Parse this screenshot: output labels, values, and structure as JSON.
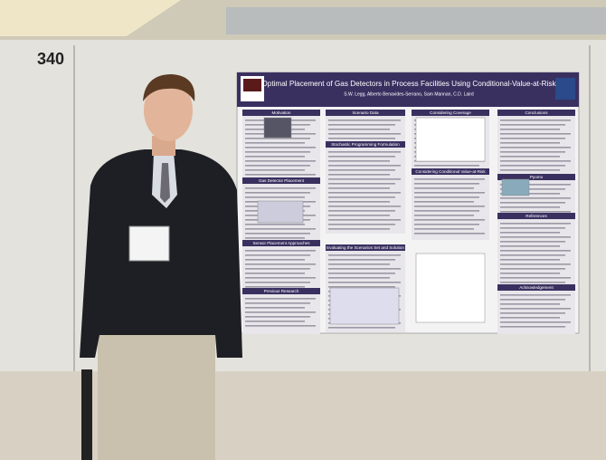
{
  "booth_number": "340",
  "poster": {
    "title": "Optimal Placement of Gas Detectors in Process Facilities Using Conditional-Value-at-Risk",
    "authors": "S.W. Legg, Alberto Benavides-Serrano, Sam Mannan, C.D. Laird",
    "sections": [
      "Motivation",
      "Scenario Data",
      "Considering Coverage",
      "Conclusions",
      "Gas Detector Placement",
      "Stochastic Programming Formulation",
      "Considering Conditional Value-at-Risk",
      "Pyomo",
      "Sensor Placement Approaches",
      "Evaluating the Scenarios Set and Solution",
      "References",
      "Previous Research",
      "Acknowledgement"
    ]
  }
}
